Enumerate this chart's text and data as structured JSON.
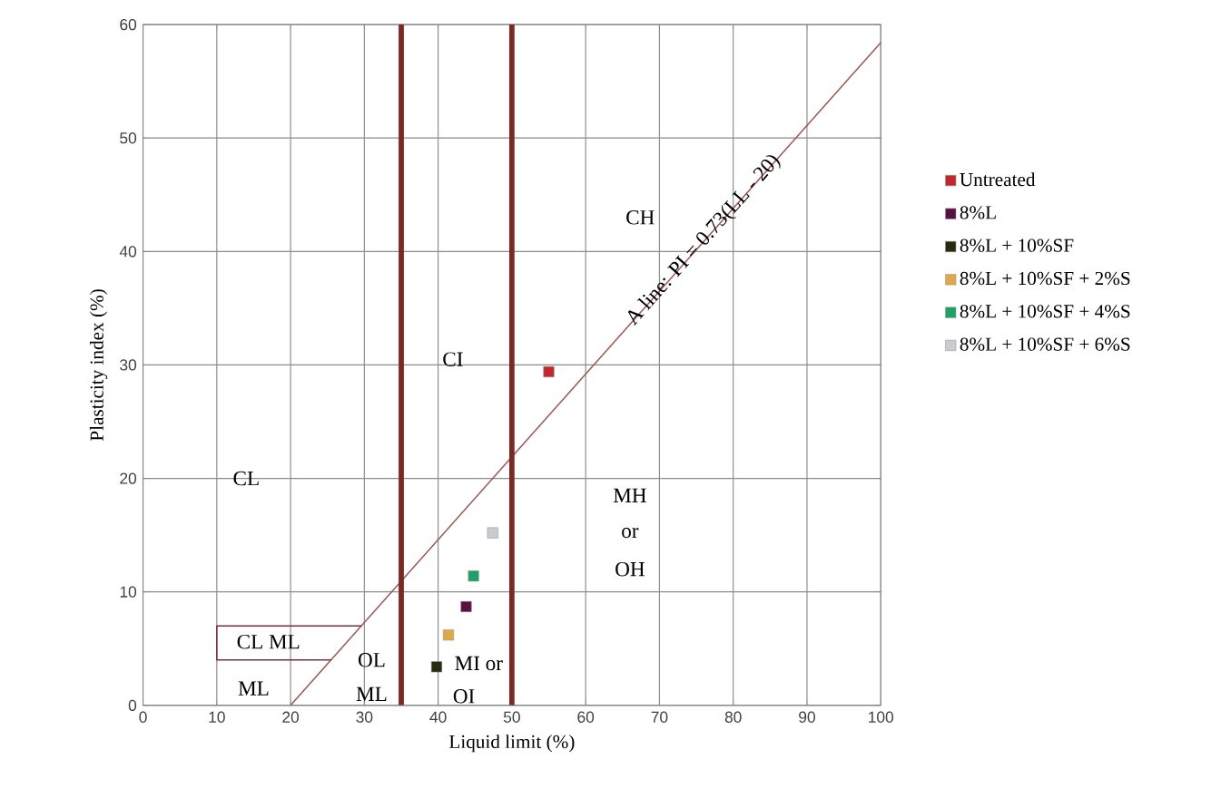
{
  "chart_data": {
    "type": "scatter",
    "xlabel": "Liquid limit (%)",
    "ylabel": "Plasticity index (%)",
    "xlim": [
      0,
      100
    ],
    "ylim": [
      0,
      60
    ],
    "xticks": [
      0,
      10,
      20,
      30,
      40,
      50,
      60,
      70,
      80,
      90,
      100
    ],
    "yticks": [
      0,
      10,
      20,
      30,
      40,
      50,
      60
    ],
    "grid": true,
    "legend": "right",
    "marker": "square",
    "series": [
      {
        "name": "Untreated",
        "color": "#c0282d",
        "x": [
          55
        ],
        "values": [
          29.4
        ]
      },
      {
        "name": "8%L",
        "color": "#5a1040",
        "x": [
          43.8
        ],
        "values": [
          8.7
        ]
      },
      {
        "name": "8%L + 10%SF",
        "color": "#2a2a10",
        "x": [
          39.8
        ],
        "values": [
          3.4
        ]
      },
      {
        "name": "8%L + 10%SF + 2%S",
        "color": "#e0a848",
        "x": [
          41.4
        ],
        "values": [
          6.2
        ]
      },
      {
        "name": "8%L + 10%SF + 4%S",
        "color": "#20a068",
        "x": [
          44.8
        ],
        "values": [
          11.4
        ]
      },
      {
        "name": "8%L + 10%SF + 6%S",
        "color": "#c8ccd0",
        "x": [
          47.4
        ],
        "values": [
          15.2
        ]
      },
      {
        "type": "line",
        "marker": "none",
        "color": "#9a5a55",
        "x": [
          20,
          100
        ],
        "values": [
          0,
          58.4
        ]
      },
      {
        "type": "line",
        "marker": "none",
        "color": "#7a3040",
        "x": [
          29.6,
          10,
          10,
          25.5
        ],
        "values": [
          7,
          7,
          4,
          4
        ]
      }
    ],
    "ref_lines": [
      {
        "axis": "x",
        "value": 35,
        "color": "#7a2a22"
      },
      {
        "axis": "x",
        "value": 50,
        "color": "#7a2a22"
      }
    ],
    "annotations": [
      {
        "text": "A line: PI = 0.73(LL - 20)",
        "x": 76,
        "y": 41
      },
      "CH",
      "CI",
      "CL",
      "MH",
      "or",
      "OH",
      "CL ML",
      "ML",
      "OL",
      "ML",
      "MI or",
      "OI"
    ]
  }
}
